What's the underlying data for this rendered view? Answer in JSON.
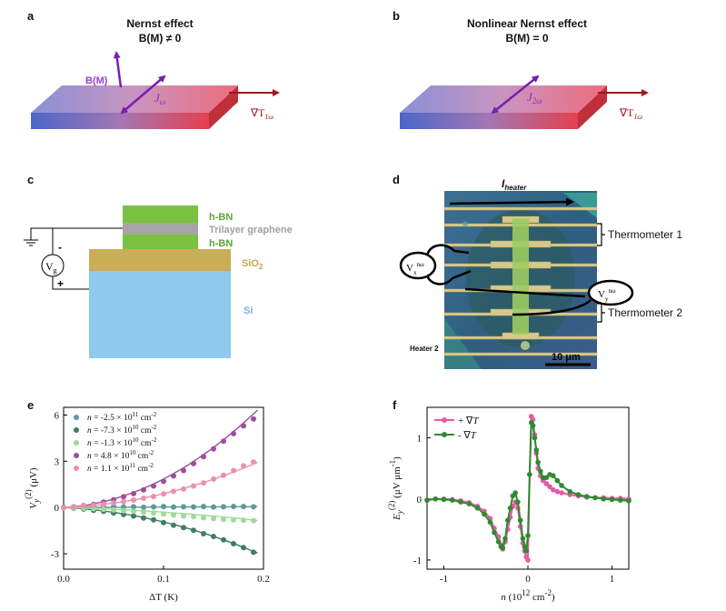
{
  "panels": {
    "a": {
      "label": "a",
      "title1": "Nernst effect",
      "title2": "B(M) ≠ 0",
      "field_label": "B(M)",
      "current_main": "J",
      "current_sub": "ω",
      "gradient_main": "∇T",
      "gradient_sub": "1ω"
    },
    "b": {
      "label": "b",
      "title1": "Nonlinear Nernst effect",
      "title2": "B(M) = 0",
      "current_main": "J",
      "current_sub": "2ω",
      "gradient_main": "∇T",
      "gradient_sub": "1ω"
    },
    "c": {
      "label": "c",
      "layers": {
        "hbn_top": "h-BN",
        "graphene": "Trilayer graphene",
        "hbn_bottom": "h-BN",
        "sio2": "SiO",
        "sio2_sub": "2",
        "si": "Si"
      },
      "gate_main": "V",
      "gate_sub": "g",
      "minus": "-",
      "plus": "+",
      "colors": {
        "hbn": "#7ac142",
        "graphene": "#a6a6a6",
        "sio2": "#c9ad57",
        "si": "#8ec9ee"
      }
    },
    "d": {
      "label": "d",
      "heater_main": "I",
      "heater_sub": "heater",
      "thermometer1": "Thermometer 1",
      "thermometer2": "Thermometer 2",
      "heater2": "Heater 2",
      "vx_main": "V",
      "vx_sup": "nω",
      "vx_sub": "x",
      "vy_main": "V",
      "vy_sup": "nω",
      "vy_sub": "y",
      "scale_bar": "10 μm"
    },
    "e": {
      "label": "e"
    },
    "f": {
      "label": "f"
    }
  },
  "chart_data": [
    {
      "panel": "e",
      "type": "scatter",
      "xlabel_main": "ΔT",
      "xlabel_unit": " (K)",
      "ylabel_main": "V",
      "ylabel_sub": "y",
      "ylabel_sup": "(2)",
      "ylabel_unit": " (μV)",
      "xlim": [
        0,
        0.2
      ],
      "ylim": [
        -4,
        6.5
      ],
      "xticks": [
        0.0,
        0.1,
        0.2
      ],
      "xtick_labels": [
        "0.0",
        "0.1",
        "0.2"
      ],
      "yticks": [
        -3,
        0,
        3,
        6
      ],
      "legend_position": "top-left",
      "x": [
        0.0,
        0.01,
        0.02,
        0.03,
        0.04,
        0.05,
        0.06,
        0.07,
        0.08,
        0.09,
        0.1,
        0.11,
        0.12,
        0.13,
        0.14,
        0.15,
        0.16,
        0.17,
        0.18,
        0.19
      ],
      "series": [
        {
          "name": "n = -2.5 × 10",
          "exp": "11",
          "unit": " cm",
          "unit_sup": "-2",
          "color": "#5b9a9a",
          "fit": [
            0,
            0.3,
            0.0
          ],
          "values": [
            0.02,
            0.0,
            0.05,
            0.03,
            0.04,
            0.06,
            0.03,
            0.05,
            0.02,
            0.04,
            0.06,
            0.03,
            0.05,
            0.04,
            0.06,
            0.03,
            0.05,
            0.07,
            0.06,
            0.05
          ]
        },
        {
          "name": "n = -7.3 × 10",
          "exp": "10",
          "unit": " cm",
          "unit_sup": "-2",
          "color": "#3e7d67",
          "fit": [
            0,
            -3.2,
            -62.0
          ],
          "values": [
            0.0,
            -0.05,
            -0.1,
            -0.18,
            -0.25,
            -0.35,
            -0.45,
            -0.55,
            -0.68,
            -0.8,
            -0.98,
            -1.15,
            -1.3,
            -1.48,
            -1.7,
            -1.88,
            -2.1,
            -2.35,
            -2.6,
            -2.9
          ]
        },
        {
          "name": "n = -1.3 × 10",
          "exp": "10",
          "unit": " cm",
          "unit_sup": "-2",
          "color": "#9edb99",
          "fit": [
            0,
            -1.6,
            -14.0
          ],
          "values": [
            0.0,
            -0.03,
            -0.05,
            -0.08,
            -0.12,
            -0.16,
            -0.2,
            -0.25,
            -0.3,
            -0.36,
            -0.42,
            -0.48,
            -0.55,
            -0.6,
            -0.66,
            -0.72,
            -0.78,
            -0.8,
            -0.82,
            -0.85
          ]
        },
        {
          "name": "n = 4.8 × 10",
          "exp": "10",
          "unit": " cm",
          "unit_sup": "-2",
          "color": "#9b4e9d",
          "fit": [
            0,
            3.5,
            150.0
          ],
          "values": [
            0.0,
            0.05,
            0.12,
            0.2,
            0.35,
            0.5,
            0.7,
            0.9,
            1.15,
            1.4,
            1.7,
            2.05,
            2.4,
            2.85,
            3.3,
            3.8,
            4.3,
            4.8,
            5.3,
            5.75
          ]
        },
        {
          "name": "n = 1.1 × 10",
          "exp": "11",
          "unit": " cm",
          "unit_sup": "-2",
          "color": "#ec8fb1",
          "fit": [
            0,
            2.5,
            65.0
          ],
          "values": [
            0.0,
            0.05,
            0.1,
            0.15,
            0.22,
            0.3,
            0.38,
            0.48,
            0.6,
            0.72,
            0.88,
            1.05,
            1.2,
            1.4,
            1.6,
            1.85,
            2.1,
            2.4,
            2.7,
            2.95
          ]
        }
      ]
    },
    {
      "panel": "f",
      "type": "line",
      "xlabel_main": "n",
      "xlabel_unit": " (10",
      "xlabel_exp": "12",
      "xlabel_unit2": " cm",
      "xlabel_exp2": "-2",
      "xlabel_close": ")",
      "ylabel_main": "E",
      "ylabel_sub": "y",
      "ylabel_sup": "(2)",
      "ylabel_unit": " (μV μm",
      "ylabel_exp": "-1",
      "ylabel_close": ")",
      "xlim": [
        -1.2,
        1.2
      ],
      "ylim": [
        -1.15,
        1.5
      ],
      "xticks": [
        -1,
        0,
        1
      ],
      "yticks": [
        -1,
        0,
        1
      ],
      "legend_position": "top-left",
      "series": [
        {
          "name": "+ ∇",
          "name_it": "T",
          "color": "#e35aa5",
          "x": [
            -1.2,
            -1.1,
            -1.0,
            -0.9,
            -0.8,
            -0.7,
            -0.6,
            -0.52,
            -0.45,
            -0.4,
            -0.35,
            -0.32,
            -0.3,
            -0.27,
            -0.24,
            -0.21,
            -0.18,
            -0.15,
            -0.12,
            -0.09,
            -0.06,
            -0.04,
            -0.02,
            0.0,
            0.02,
            0.04,
            0.06,
            0.08,
            0.1,
            0.12,
            0.15,
            0.18,
            0.22,
            0.26,
            0.3,
            0.35,
            0.4,
            0.5,
            0.6,
            0.7,
            0.8,
            0.9,
            1.0,
            1.1,
            1.2
          ],
          "y": [
            -0.02,
            0.0,
            0.0,
            -0.01,
            -0.03,
            -0.06,
            -0.12,
            -0.2,
            -0.32,
            -0.48,
            -0.62,
            -0.75,
            -0.82,
            -0.7,
            -0.5,
            -0.3,
            -0.12,
            -0.05,
            -0.15,
            -0.45,
            -0.72,
            -0.85,
            -0.95,
            -1.0,
            0.4,
            1.35,
            1.3,
            1.05,
            0.75,
            0.5,
            0.38,
            0.3,
            0.25,
            0.2,
            0.15,
            0.12,
            0.1,
            0.07,
            0.05,
            0.03,
            0.02,
            0.02,
            0.01,
            0.01,
            0.0
          ]
        },
        {
          "name": "- ∇",
          "name_it": "T",
          "color": "#2e8b2e",
          "x": [
            -1.2,
            -1.1,
            -1.0,
            -0.9,
            -0.8,
            -0.7,
            -0.6,
            -0.52,
            -0.45,
            -0.4,
            -0.35,
            -0.32,
            -0.3,
            -0.27,
            -0.24,
            -0.21,
            -0.18,
            -0.15,
            -0.12,
            -0.09,
            -0.06,
            -0.04,
            -0.02,
            0.0,
            0.02,
            0.04,
            0.06,
            0.08,
            0.1,
            0.12,
            0.15,
            0.18,
            0.22,
            0.26,
            0.3,
            0.35,
            0.4,
            0.5,
            0.6,
            0.7,
            0.8,
            0.9,
            1.0,
            1.1,
            1.2
          ],
          "y": [
            -0.02,
            0.0,
            -0.01,
            -0.02,
            -0.05,
            -0.08,
            -0.15,
            -0.25,
            -0.38,
            -0.55,
            -0.7,
            -0.78,
            -0.8,
            -0.65,
            -0.35,
            -0.15,
            0.05,
            0.1,
            -0.05,
            -0.35,
            -0.65,
            -0.78,
            -0.85,
            -0.6,
            0.4,
            1.25,
            1.2,
            1.0,
            0.8,
            0.6,
            0.45,
            0.35,
            0.35,
            0.4,
            0.38,
            0.3,
            0.22,
            0.12,
            0.07,
            0.04,
            0.02,
            0.0,
            -0.01,
            -0.02,
            -0.03
          ]
        }
      ]
    }
  ]
}
